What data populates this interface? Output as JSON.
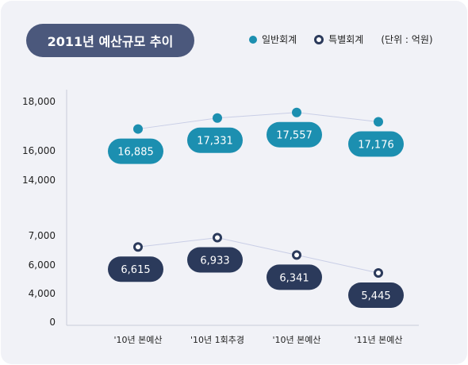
{
  "title": "2011년 예산규모 추이",
  "legend": {
    "general": "일반회계",
    "special": "특별회계",
    "unit": "(단위 : 억원)"
  },
  "colors": {
    "general": "#1c8fb0",
    "special": "#2b3a5b",
    "line": "#c9cee6",
    "axis": "#c9ccd8"
  },
  "chart_data": {
    "type": "line",
    "categories": [
      "'10년 본예산",
      "'10년 1회추경",
      "'10년 본예산",
      "'11년 본예산"
    ],
    "series": [
      {
        "name": "일반회계",
        "values": [
          16885,
          17331,
          17557,
          17176
        ],
        "labels": [
          "16,885",
          "17,331",
          "17,557",
          "17,176"
        ]
      },
      {
        "name": "특별회계",
        "values": [
          6615,
          6933,
          6341,
          5445
        ],
        "labels": [
          "6,615",
          "6,933",
          "6,341",
          "5,445"
        ]
      }
    ],
    "yticks": [
      {
        "value": 18000,
        "label": "18,000"
      },
      {
        "value": 16000,
        "label": "16,000"
      },
      {
        "value": 14000,
        "label": "14,000"
      },
      {
        "value": 7000,
        "label": "7,000"
      },
      {
        "value": 6000,
        "label": "6,000"
      },
      {
        "value": 4000,
        "label": "4,000"
      },
      {
        "value": 0,
        "label": "0"
      }
    ],
    "axis_break": true
  }
}
